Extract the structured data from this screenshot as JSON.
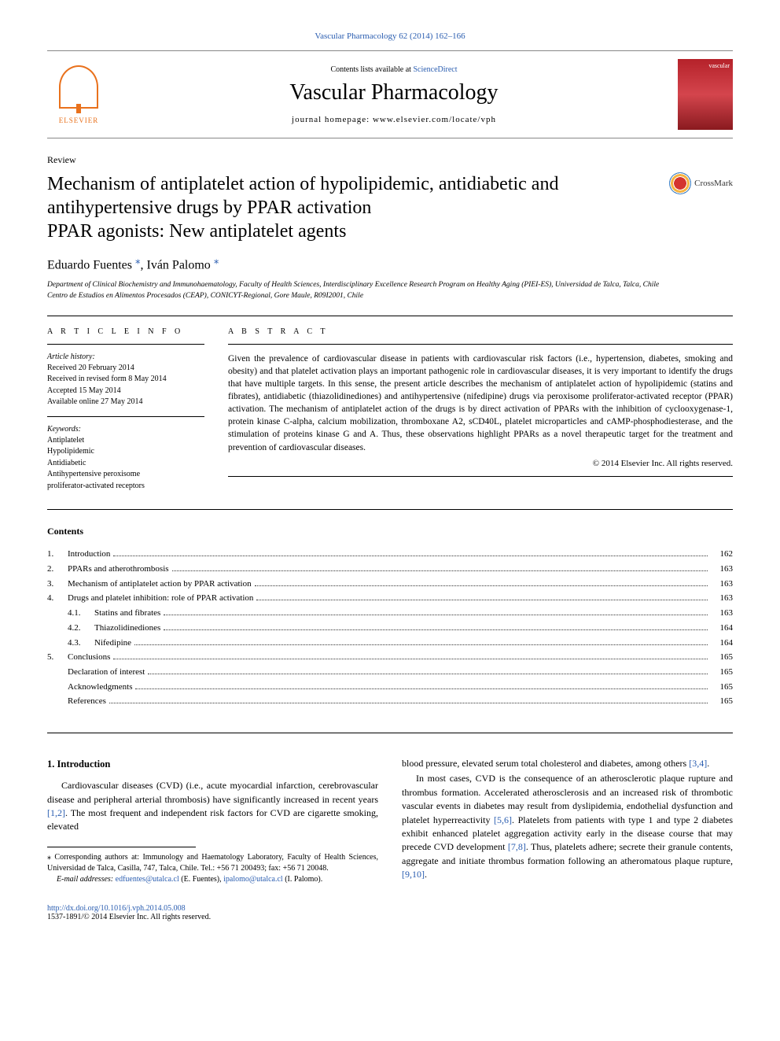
{
  "top_link": "Vascular Pharmacology 62 (2014) 162–166",
  "header": {
    "contents_prefix": "Contents lists available at ",
    "sd": "ScienceDirect",
    "journal": "Vascular Pharmacology",
    "homepage_prefix": "journal homepage: ",
    "homepage": "www.elsevier.com/locate/vph",
    "elsevier": "ELSEVIER",
    "cover_text": "vascular"
  },
  "article": {
    "type": "Review",
    "title": "Mechanism of antiplatelet action of hypolipidemic, antidiabetic and antihypertensive drugs by PPAR activation\nPPAR agonists: New antiplatelet agents",
    "crossmark": "CrossMark",
    "authors": "Eduardo Fuentes ",
    "authors2": ", Iván Palomo ",
    "aff1": "Department of Clinical Biochemistry and Immunohaematology, Faculty of Health Sciences, Interdisciplinary Excellence Research Program on Healthy Aging (PIEI-ES), Universidad de Talca, Talca, Chile",
    "aff2": "Centro de Estudios en Alimentos Procesados (CEAP), CONICYT-Regional, Gore Maule, R09I2001, Chile"
  },
  "info": {
    "heading": "A R T I C L E   I N F O",
    "history_label": "Article history:",
    "received": "Received 20 February 2014",
    "revised": "Received in revised form 8 May 2014",
    "accepted": "Accepted 15 May 2014",
    "online": "Available online 27 May 2014",
    "keywords_label": "Keywords:",
    "kw1": "Antiplatelet",
    "kw2": "Hypolipidemic",
    "kw3": "Antidiabetic",
    "kw4": "Antihypertensive peroxisome",
    "kw5": "proliferator-activated receptors"
  },
  "abstract": {
    "heading": "A B S T R A C T",
    "text": "Given the prevalence of cardiovascular disease in patients with cardiovascular risk factors (i.e., hypertension, diabetes, smoking and obesity) and that platelet activation plays an important pathogenic role in cardiovascular diseases, it is very important to identify the drugs that have multiple targets. In this sense, the present article describes the mechanism of antiplatelet action of hypolipidemic (statins and fibrates), antidiabetic (thiazolidinediones) and antihypertensive (nifedipine) drugs via peroxisome proliferator-activated receptor (PPAR) activation. The mechanism of antiplatelet action of the drugs is by direct activation of PPARs with the inhibition of cyclooxygenase-1, protein kinase C-alpha, calcium mobilization, thromboxane A2, sCD40L, platelet microparticles and cAMP-phosphodiesterase, and the stimulation of proteins kinase G and A. Thus, these observations highlight PPARs as a novel therapeutic target for the treatment and prevention of cardiovascular diseases.",
    "copyright": "© 2014 Elsevier Inc. All rights reserved."
  },
  "contents": {
    "title": "Contents",
    "items": [
      {
        "num": "1.",
        "label": "Introduction",
        "page": "162"
      },
      {
        "num": "2.",
        "label": "PPARs and atherothrombosis",
        "page": "163"
      },
      {
        "num": "3.",
        "label": "Mechanism of antiplatelet action by PPAR activation",
        "page": "163"
      },
      {
        "num": "4.",
        "label": "Drugs and platelet inhibition: role of PPAR activation",
        "page": "163"
      },
      {
        "num": "",
        "sub": "4.1.",
        "label": "Statins and fibrates",
        "page": "163",
        "indent": true
      },
      {
        "num": "",
        "sub": "4.2.",
        "label": "Thiazolidinediones",
        "page": "164",
        "indent": true
      },
      {
        "num": "",
        "sub": "4.3.",
        "label": "Nifedipine",
        "page": "164",
        "indent": true
      },
      {
        "num": "5.",
        "label": "Conclusions",
        "page": "165"
      },
      {
        "num": "",
        "label": "Declaration of interest",
        "page": "165"
      },
      {
        "num": "",
        "label": "Acknowledgments",
        "page": "165"
      },
      {
        "num": "",
        "label": "References",
        "page": "165"
      }
    ]
  },
  "body": {
    "intro_heading": "1. Introduction",
    "p1a": "Cardiovascular diseases (CVD) (i.e., acute myocardial infarction, cerebrovascular disease and peripheral arterial thrombosis) have significantly increased in recent years ",
    "r12": "[1,2]",
    "p1b": ". The most frequent and independent risk factors for CVD are cigarette smoking, elevated ",
    "p2a": "blood pressure, elevated serum total cholesterol and diabetes, among others ",
    "r34": "[3,4]",
    "p2b": ".",
    "p3a": "In most cases, CVD is the consequence of an atherosclerotic plaque rupture and thrombus formation. Accelerated atherosclerosis and an increased risk of thrombotic vascular events in diabetes may result from dyslipidemia, endothelial dysfunction and platelet hyperreactivity ",
    "r56": "[5,6]",
    "p3b": ". Platelets from patients with type 1 and type 2 diabetes exhibit enhanced platelet aggregation activity early in the disease course that may precede CVD development ",
    "r78": "[7,8]",
    "p3c": ". Thus, platelets adhere; secrete their granule contents, aggregate and initiate thrombus formation following an atheromatous plaque rupture, ",
    "r910": "[9,10]",
    "p3d": "."
  },
  "footnote": {
    "corr_label": "⁎ Corresponding authors at: Immunology and Haematology Laboratory, Faculty of Health Sciences, Universidad de Talca, Casilla, 747, Talca, Chile. Tel.: +56 71 200493; fax: +56 71 20048.",
    "email_label": "E-mail addresses: ",
    "email1": "edfuentes@utalca.cl",
    "email1_after": " (E. Fuentes), ",
    "email2": "ipalomo@utalca.cl",
    "email2_after": " (I. Palomo)."
  },
  "footer": {
    "doi": "http://dx.doi.org/10.1016/j.vph.2014.05.008",
    "issn_copy": "1537-1891/© 2014 Elsevier Inc. All rights reserved."
  }
}
